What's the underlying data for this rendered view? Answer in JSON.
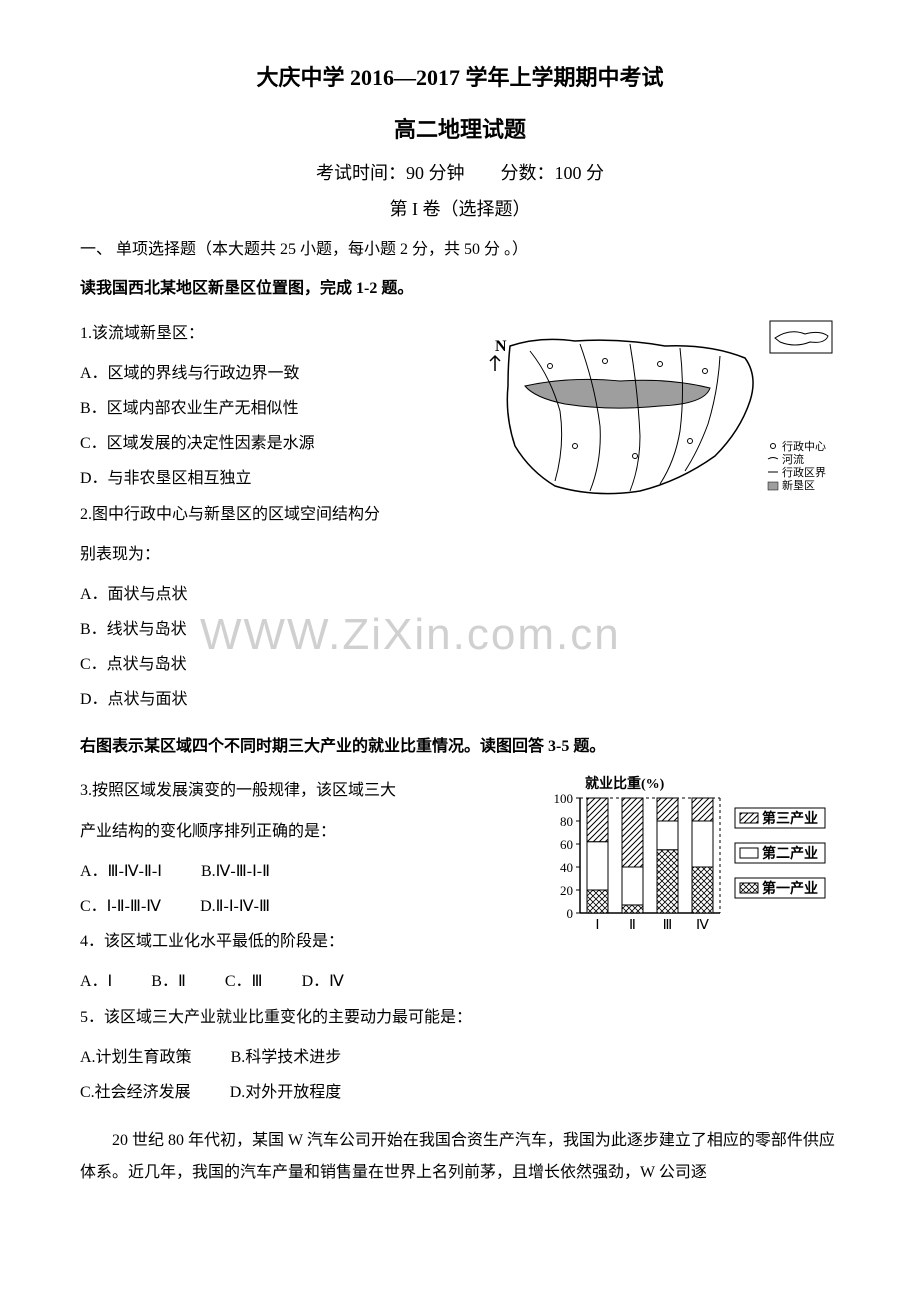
{
  "header": {
    "title_main": "大庆中学 2016—2017 学年上学期期中考试",
    "title_sub": "高二地理试题",
    "exam_info": "考试时间：90 分钟  分数：100 分",
    "section_label": "第 I 卷（选择题）"
  },
  "section1": {
    "heading": "一、 单项选择题（本大题共 25 小题，每小题 2 分，共 50 分 。）",
    "intro1": "读我国西北某地区新垦区位置图，完成 1-2 题。"
  },
  "q1": {
    "text": "1.该流域新垦区：",
    "a": "A．区域的界线与行政边界一致",
    "b": "B．区域内部农业生产无相似性",
    "c": "C．区域发展的决定性因素是水源",
    "d": "D．与非农垦区相互独立"
  },
  "q2": {
    "text": "2.图中行政中心与新垦区的区域空间结构分",
    "text2": "别表现为：",
    "a": "A．面状与点状",
    "b": "B．线状与岛状",
    "c": "C．点状与岛状",
    "d": "D．点状与面状"
  },
  "intro2": "右图表示某区域四个不同时期三大产业的就业比重情况。读图回答 3-5 题。",
  "q3": {
    "text": "3.按照区域发展演变的一般规律，该区域三大",
    "text2": "产业结构的变化顺序排列正确的是：",
    "a": "A．Ⅲ-Ⅳ-Ⅱ-Ⅰ",
    "b": "B.Ⅳ-Ⅲ-Ⅰ-Ⅱ",
    "c": "C．Ⅰ-Ⅱ-Ⅲ-Ⅳ",
    "d": "D.Ⅱ-Ⅰ-Ⅳ-Ⅲ"
  },
  "q4": {
    "text": "4．该区域工业化水平最低的阶段是：",
    "a": "A．Ⅰ",
    "b": "B．Ⅱ",
    "c": "C．Ⅲ",
    "d": "D．Ⅳ"
  },
  "q5": {
    "text": "5．该区域三大产业就业比重变化的主要动力最可能是：",
    "a": "A.计划生育政策",
    "b": "B.科学技术进步",
    "c": "C.社会经济发展",
    "d": "D.对外开放程度"
  },
  "paragraph1": "20 世纪 80 年代初，某国 W 汽车公司开始在我国合资生产汽车，我国为此逐步建立了相应的零部件供应体系。近几年，我国的汽车产量和销售量在世界上名列前茅，且增长依然强劲，W 公司逐",
  "watermark": "WWW.ZiXin.com.cn",
  "map": {
    "legend": {
      "admin_center": "行政中心",
      "river": "河流",
      "admin_boundary": "行政区界",
      "new_area": "新垦区"
    },
    "north_label": "N",
    "colors": {
      "outline": "#000000",
      "fill_gray": "#9e9e9e",
      "background": "#ffffff"
    }
  },
  "chart": {
    "title": "就业比重(%)",
    "y_axis": {
      "min": 0,
      "max": 100,
      "ticks": [
        0,
        20,
        40,
        60,
        80,
        100
      ]
    },
    "x_categories": [
      "Ⅰ",
      "Ⅱ",
      "Ⅲ",
      "Ⅳ"
    ],
    "legend": {
      "tertiary": "第三产业",
      "secondary": "第二产业",
      "primary": "第一产业"
    },
    "series": {
      "primary": [
        20,
        7,
        55,
        40
      ],
      "secondary": [
        42,
        33,
        25,
        40
      ],
      "tertiary": [
        38,
        60,
        20,
        20
      ]
    },
    "colors": {
      "primary_fill": "crosshatch",
      "secondary_fill": "#ffffff",
      "tertiary_fill": "diagonal",
      "border": "#000000",
      "grid": "#000000"
    },
    "bar_width": 0.6
  }
}
